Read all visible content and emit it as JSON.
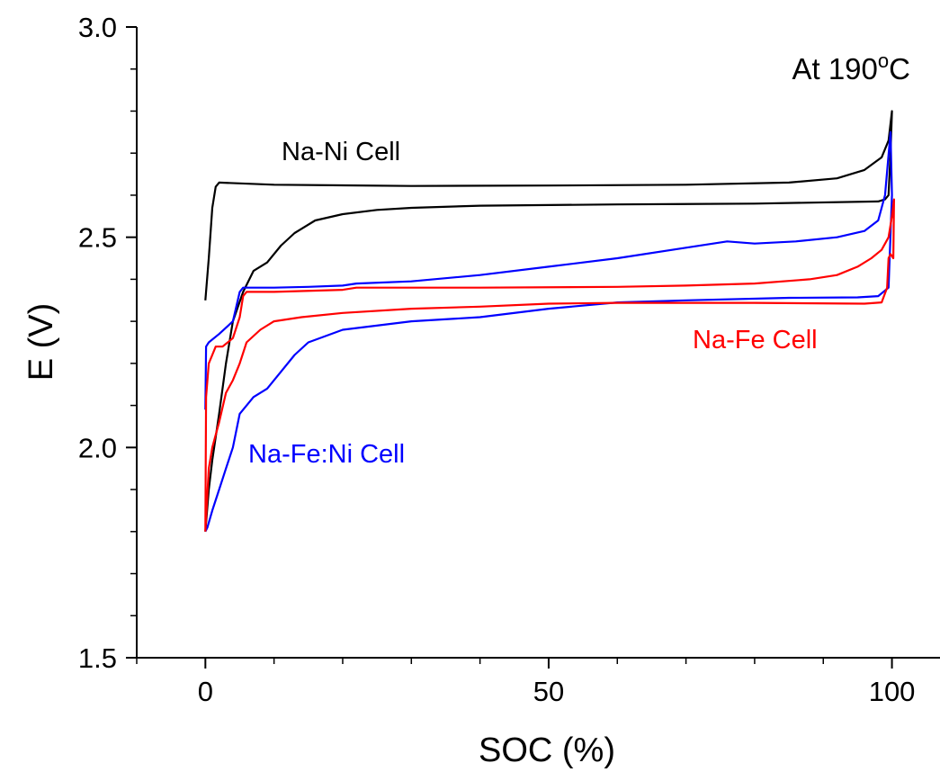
{
  "chart_data": {
    "type": "line",
    "title": "",
    "xlabel": "SOC (%)",
    "ylabel": "E (V)",
    "xlim": [
      -10,
      107
    ],
    "ylim": [
      1.5,
      3.0
    ],
    "x_ticks": [
      "0",
      "50",
      "100"
    ],
    "y_ticks": [
      "1.5",
      "2.0",
      "2.5",
      "3.0"
    ],
    "grid": false,
    "legend": "none",
    "condition_label": {
      "prefix": "At 190",
      "superscript": "o",
      "suffix": "C"
    },
    "annotations": [
      {
        "text": "Na-Ni Cell",
        "color": "#000000"
      },
      {
        "text": "Na-Fe Cell",
        "color": "#ff0000"
      },
      {
        "text": "Na-Fe:Ni Cell",
        "color": "#0000ff"
      }
    ],
    "series": [
      {
        "label": "Na-Ni Cell",
        "color": "#000000",
        "points": [
          [
            0,
            2.35
          ],
          [
            0.5,
            2.45
          ],
          [
            1,
            2.57
          ],
          [
            1.5,
            2.62
          ],
          [
            2,
            2.63
          ],
          [
            10,
            2.625
          ],
          [
            30,
            2.622
          ],
          [
            50,
            2.623
          ],
          [
            70,
            2.625
          ],
          [
            85,
            2.63
          ],
          [
            92,
            2.64
          ],
          [
            96,
            2.66
          ],
          [
            98.5,
            2.69
          ],
          [
            99.5,
            2.73
          ],
          [
            100,
            2.8
          ],
          [
            99.8,
            2.7
          ],
          [
            99.5,
            2.6
          ],
          [
            99,
            2.59
          ],
          [
            98,
            2.585
          ],
          [
            80,
            2.58
          ],
          [
            60,
            2.578
          ],
          [
            40,
            2.575
          ],
          [
            30,
            2.57
          ],
          [
            25,
            2.565
          ],
          [
            20,
            2.555
          ],
          [
            16,
            2.54
          ],
          [
            13,
            2.51
          ],
          [
            11,
            2.48
          ],
          [
            9,
            2.44
          ],
          [
            7,
            2.42
          ],
          [
            5.5,
            2.37
          ],
          [
            4,
            2.3
          ],
          [
            3,
            2.2
          ],
          [
            2,
            2.08
          ],
          [
            1,
            1.97
          ],
          [
            0.5,
            1.9
          ],
          [
            0,
            1.8
          ]
        ]
      },
      {
        "label": "Na-Fe:Ni Cell",
        "color": "#0000ff",
        "points": [
          [
            0,
            2.09
          ],
          [
            0.1,
            2.24
          ],
          [
            0.5,
            2.25
          ],
          [
            2,
            2.27
          ],
          [
            4,
            2.3
          ],
          [
            5,
            2.37
          ],
          [
            5.5,
            2.38
          ],
          [
            10,
            2.38
          ],
          [
            15,
            2.382
          ],
          [
            20,
            2.385
          ],
          [
            22,
            2.39
          ],
          [
            30,
            2.395
          ],
          [
            40,
            2.41
          ],
          [
            50,
            2.43
          ],
          [
            60,
            2.45
          ],
          [
            70,
            2.475
          ],
          [
            76,
            2.49
          ],
          [
            80,
            2.485
          ],
          [
            86,
            2.49
          ],
          [
            92,
            2.5
          ],
          [
            96,
            2.515
          ],
          [
            98,
            2.54
          ],
          [
            99,
            2.6
          ],
          [
            99.8,
            2.75
          ],
          [
            100,
            2.6
          ],
          [
            99.5,
            2.38
          ],
          [
            98,
            2.36
          ],
          [
            95,
            2.357
          ],
          [
            85,
            2.356
          ],
          [
            70,
            2.35
          ],
          [
            60,
            2.345
          ],
          [
            50,
            2.33
          ],
          [
            40,
            2.31
          ],
          [
            30,
            2.3
          ],
          [
            20,
            2.28
          ],
          [
            15,
            2.25
          ],
          [
            13,
            2.22
          ],
          [
            11,
            2.18
          ],
          [
            9,
            2.14
          ],
          [
            7,
            2.12
          ],
          [
            5,
            2.08
          ],
          [
            4,
            2.0
          ],
          [
            3,
            1.95
          ],
          [
            2,
            1.9
          ],
          [
            1,
            1.85
          ],
          [
            0.3,
            1.81
          ],
          [
            0,
            1.8
          ]
        ]
      },
      {
        "label": "Na-Fe Cell",
        "color": "#ff0000",
        "points": [
          [
            0,
            1.8
          ],
          [
            0.1,
            2.12
          ],
          [
            0.5,
            2.2
          ],
          [
            1,
            2.22
          ],
          [
            1.5,
            2.24
          ],
          [
            2.5,
            2.24
          ],
          [
            4,
            2.26
          ],
          [
            5,
            2.31
          ],
          [
            5.5,
            2.36
          ],
          [
            6,
            2.37
          ],
          [
            10,
            2.37
          ],
          [
            20,
            2.375
          ],
          [
            22,
            2.38
          ],
          [
            40,
            2.38
          ],
          [
            60,
            2.382
          ],
          [
            70,
            2.385
          ],
          [
            80,
            2.39
          ],
          [
            88,
            2.4
          ],
          [
            92,
            2.41
          ],
          [
            95,
            2.43
          ],
          [
            97,
            2.45
          ],
          [
            98.5,
            2.47
          ],
          [
            99.5,
            2.5
          ],
          [
            100,
            2.55
          ],
          [
            100.3,
            2.59
          ],
          [
            100.2,
            2.45
          ],
          [
            99.8,
            2.46
          ],
          [
            99.5,
            2.45
          ],
          [
            99.3,
            2.38
          ],
          [
            98.5,
            2.345
          ],
          [
            96,
            2.342
          ],
          [
            80,
            2.344
          ],
          [
            60,
            2.344
          ],
          [
            50,
            2.342
          ],
          [
            40,
            2.335
          ],
          [
            30,
            2.33
          ],
          [
            20,
            2.32
          ],
          [
            14,
            2.31
          ],
          [
            10,
            2.3
          ],
          [
            8,
            2.28
          ],
          [
            6,
            2.25
          ],
          [
            5,
            2.2
          ],
          [
            4,
            2.16
          ],
          [
            3,
            2.13
          ],
          [
            2,
            2.06
          ],
          [
            1,
            2.0
          ],
          [
            0.5,
            1.95
          ],
          [
            0,
            1.8
          ]
        ]
      }
    ]
  }
}
